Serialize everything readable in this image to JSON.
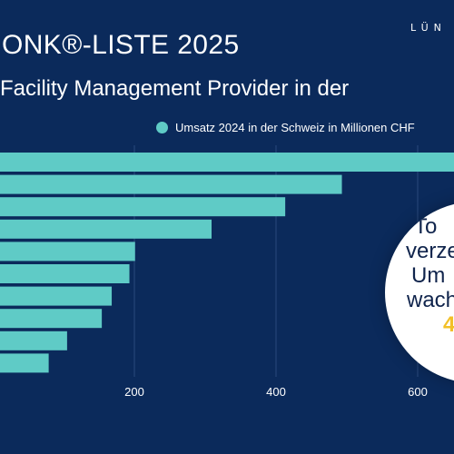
{
  "header": {
    "title": "ONK®-LISTE 2025",
    "subtitle": "Facility Management Provider in der",
    "logo": "LÜN"
  },
  "legend": {
    "label": "Umsatz 2024 in der Schweiz in Millionen CHF"
  },
  "badge": {
    "lines": [
      "To",
      "verze",
      "Um",
      "wachs",
      "4"
    ]
  },
  "chart_data": {
    "type": "bar",
    "orientation": "horizontal",
    "series": [
      {
        "name": "Umsatz 2024 in der Schweiz in Millionen CHF",
        "values": [
          720,
          493,
          413,
          309,
          201,
          193,
          168,
          154,
          105,
          79
        ]
      }
    ],
    "xlim": [
      -130,
      790
    ],
    "xticks": [
      200,
      400,
      600
    ],
    "grid": true,
    "color": "#5fcbc6"
  }
}
